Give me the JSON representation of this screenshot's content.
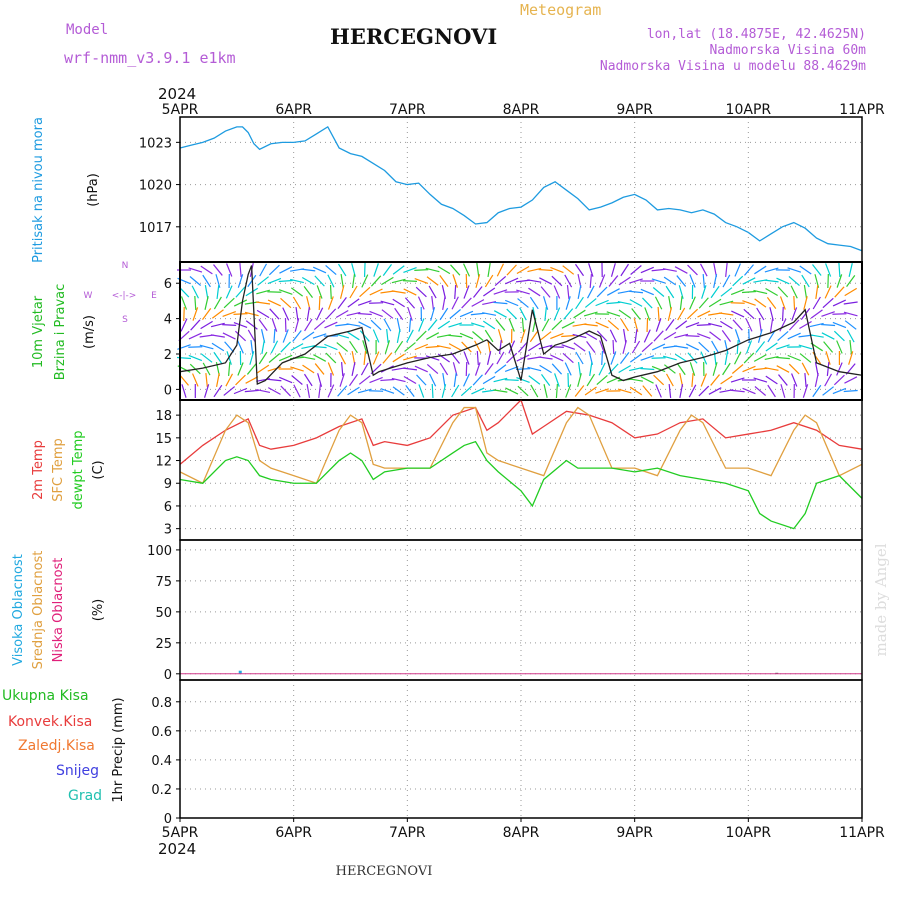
{
  "header": {
    "model_label": "Model",
    "model_name": "wrf-nmm_v3.9.1  e1km",
    "station": "HERCEGNOVI",
    "product": "Meteogram",
    "lonlat": "lon,lat (18.4875E, 42.4625N)",
    "elevation": "Nadmorska Visina 60m",
    "model_elevation": "Nadmorska Visina u modelu 88.4629m",
    "watermark": "made by Angel",
    "footer_station": "HERCEGNOVI"
  },
  "colors": {
    "pressure": "#1e9be0",
    "wind_label": "#22bb22",
    "temp2m": "#e83c3c",
    "sfc": "#e0a040",
    "dewpt": "#22cc22",
    "high_cloud": "#22a9e0",
    "mid_cloud": "#e0a040",
    "low_cloud": "#e0207a",
    "purple": "#b45cd6",
    "orange_title": "#e6b450"
  },
  "chart_data": [
    {
      "type": "line",
      "panel": "pressure",
      "ylabels": [
        "Pritisak na nivou mora",
        "(hPa)"
      ],
      "x_top_year": "2024",
      "x_ticks": [
        "5APR",
        "6APR",
        "7APR",
        "8APR",
        "9APR",
        "10APR",
        "11APR"
      ],
      "y_ticks": [
        "1023",
        "1020",
        "1017"
      ],
      "ylim": [
        1014.5,
        1024.8
      ],
      "series": [
        {
          "x": [
            0,
            0.1,
            0.2,
            0.3,
            0.4,
            0.5,
            0.55,
            0.6,
            0.65,
            0.7,
            0.8,
            0.9,
            1.0,
            1.1,
            1.2,
            1.3,
            1.4,
            1.5,
            1.6,
            1.7,
            1.8,
            1.9,
            2.0,
            2.1,
            2.2,
            2.3,
            2.4,
            2.5,
            2.6,
            2.7,
            2.8,
            2.9,
            3.0,
            3.1,
            3.2,
            3.3,
            3.4,
            3.5,
            3.6,
            3.7,
            3.8,
            3.9,
            4.0,
            4.1,
            4.2,
            4.3,
            4.4,
            4.5,
            4.6,
            4.7,
            4.8,
            4.9,
            5.0,
            5.1,
            5.2,
            5.3,
            5.4,
            5.5,
            5.6,
            5.7,
            5.8,
            5.9,
            6.0
          ],
          "values": [
            1022.6,
            1022.8,
            1023.0,
            1023.3,
            1023.8,
            1024.1,
            1024.1,
            1023.7,
            1022.9,
            1022.5,
            1022.9,
            1023.0,
            1023.0,
            1023.1,
            1023.6,
            1024.1,
            1022.6,
            1022.2,
            1022.0,
            1021.5,
            1021.0,
            1020.2,
            1020.0,
            1020.1,
            1019.3,
            1018.6,
            1018.3,
            1017.8,
            1017.2,
            1017.3,
            1018.0,
            1018.3,
            1018.4,
            1018.9,
            1019.8,
            1020.2,
            1019.6,
            1019.0,
            1018.2,
            1018.4,
            1018.7,
            1019.1,
            1019.3,
            1018.9,
            1018.2,
            1018.3,
            1018.2,
            1018.0,
            1018.2,
            1017.9,
            1017.3,
            1017.0,
            1016.6,
            1016.0,
            1016.5,
            1017.0,
            1017.3,
            1016.9,
            1016.2,
            1015.8,
            1015.7,
            1015.6,
            1015.3
          ]
        }
      ]
    },
    {
      "type": "line",
      "panel": "wind",
      "ylabels": [
        "10m Vjetar",
        "Brzina i Pravac",
        "(m/s)"
      ],
      "compass": {
        "n": "N",
        "w": "W",
        "e": "E",
        "s": "S",
        "arrows": "<-|->"
      },
      "y_ticks": [
        "6",
        "4",
        "2",
        "0"
      ],
      "ylim": [
        -0.6,
        7.2
      ],
      "series": [
        {
          "name": "wind speed",
          "x": [
            0,
            0.2,
            0.4,
            0.5,
            0.55,
            0.6,
            0.63,
            0.68,
            0.75,
            0.9,
            1.1,
            1.3,
            1.5,
            1.6,
            1.7,
            1.75,
            1.85,
            2.0,
            2.2,
            2.4,
            2.6,
            2.7,
            2.8,
            2.9,
            3.0,
            3.1,
            3.2,
            3.3,
            3.4,
            3.5,
            3.6,
            3.7,
            3.8,
            3.9,
            4.0,
            4.2,
            4.4,
            4.6,
            4.8,
            5.0,
            5.2,
            5.4,
            5.5,
            5.6,
            5.8,
            6.0
          ],
          "values": [
            1.0,
            1.2,
            1.5,
            2.5,
            5.0,
            6.5,
            7.0,
            0.3,
            0.5,
            1.5,
            2.0,
            3.0,
            3.3,
            3.5,
            0.8,
            1.0,
            1.2,
            1.5,
            1.8,
            2.0,
            2.5,
            2.8,
            2.2,
            2.6,
            0.5,
            4.5,
            2.0,
            2.5,
            2.7,
            3.0,
            3.3,
            3.0,
            0.8,
            0.5,
            0.7,
            1.0,
            1.5,
            1.8,
            2.2,
            2.8,
            3.2,
            3.8,
            4.5,
            1.5,
            1.0,
            0.8
          ]
        }
      ]
    },
    {
      "type": "line",
      "panel": "temperature",
      "ylabels": [
        "2m Temp",
        "SFC Temp",
        "dewpt Temp",
        "(C)"
      ],
      "y_ticks": [
        "18",
        "15",
        "12",
        "9",
        "6",
        "3"
      ],
      "ylim": [
        1.5,
        20
      ],
      "series": [
        {
          "name": "2m Temp",
          "x": [
            0,
            0.2,
            0.4,
            0.6,
            0.7,
            0.8,
            1.0,
            1.2,
            1.4,
            1.6,
            1.7,
            1.8,
            2.0,
            2.2,
            2.4,
            2.6,
            2.7,
            2.8,
            3.0,
            3.1,
            3.2,
            3.4,
            3.6,
            3.8,
            4.0,
            4.2,
            4.4,
            4.6,
            4.8,
            5.0,
            5.2,
            5.4,
            5.6,
            5.8,
            6.0
          ],
          "values": [
            11.5,
            14,
            16,
            17.5,
            14,
            13.5,
            14,
            15,
            16.5,
            17.5,
            14,
            14.5,
            14,
            15,
            18,
            19,
            16,
            17,
            20,
            15.5,
            16.5,
            18.5,
            18,
            17,
            15,
            15.5,
            17,
            17.5,
            15,
            15.5,
            16,
            17,
            16,
            14,
            13.5
          ]
        },
        {
          "name": "SFC Temp",
          "x": [
            0,
            0.2,
            0.4,
            0.5,
            0.6,
            0.7,
            0.8,
            1.0,
            1.2,
            1.4,
            1.5,
            1.6,
            1.7,
            1.8,
            2.0,
            2.2,
            2.4,
            2.5,
            2.6,
            2.7,
            2.8,
            3.0,
            3.2,
            3.4,
            3.5,
            3.6,
            3.8,
            4.0,
            4.2,
            4.4,
            4.5,
            4.6,
            4.8,
            5.0,
            5.2,
            5.4,
            5.5,
            5.6,
            5.8,
            6.0
          ],
          "values": [
            10.5,
            9,
            16,
            18,
            17,
            12,
            11,
            10,
            9,
            16,
            18,
            17,
            11.5,
            11,
            11,
            11,
            17,
            19,
            19,
            13,
            12,
            11,
            10,
            17,
            19,
            18,
            11,
            11,
            10,
            16,
            18,
            17,
            11,
            11,
            10,
            16,
            18,
            17,
            10,
            11.5
          ]
        },
        {
          "name": "dewpt Temp",
          "x": [
            0,
            0.2,
            0.4,
            0.5,
            0.6,
            0.7,
            0.8,
            1.0,
            1.2,
            1.4,
            1.5,
            1.6,
            1.7,
            1.8,
            2.0,
            2.2,
            2.4,
            2.5,
            2.6,
            2.7,
            2.8,
            3.0,
            3.1,
            3.2,
            3.4,
            3.5,
            3.6,
            3.8,
            4.0,
            4.2,
            4.4,
            4.6,
            4.8,
            5.0,
            5.1,
            5.2,
            5.4,
            5.5,
            5.6,
            5.8,
            6.0
          ],
          "values": [
            9.5,
            9,
            12,
            12.5,
            12,
            10,
            9.5,
            9,
            9,
            12,
            13,
            12,
            9.5,
            10.5,
            11,
            11,
            13,
            14,
            14.5,
            12,
            10.5,
            8,
            6,
            9.5,
            12,
            11,
            11,
            11,
            10.5,
            11,
            10,
            9.5,
            9,
            8,
            5,
            4,
            3,
            5,
            9,
            10,
            7
          ]
        }
      ]
    },
    {
      "type": "bar",
      "panel": "cloud",
      "ylabels": [
        "Visoka Oblacnost",
        "Srednja Oblacnost",
        "Niska Oblacnost",
        "(%)"
      ],
      "y_ticks": [
        "100",
        "75",
        "50",
        "25",
        "0"
      ],
      "ylim": [
        -5,
        108
      ],
      "series": [
        {
          "name": "Visoka Oblacnost",
          "x": [
            0.53
          ],
          "values": [
            2.5
          ]
        },
        {
          "name": "Niska Oblacnost",
          "x": [
            5.25
          ],
          "values": [
            0.8
          ]
        }
      ]
    },
    {
      "type": "bar",
      "panel": "precip",
      "ylabels": [
        "1hr Precip (mm)"
      ],
      "legend": [
        "Ukupna Kisa",
        "Konvek.Kisa",
        "Zaledj.Kisa",
        "Snijeg",
        "Grad"
      ],
      "y_ticks": [
        "0.8",
        "0.6",
        "0.4",
        "0.2",
        "0"
      ],
      "ylim": [
        0,
        0.95
      ],
      "x_bottom_year": "2024",
      "series": []
    }
  ]
}
